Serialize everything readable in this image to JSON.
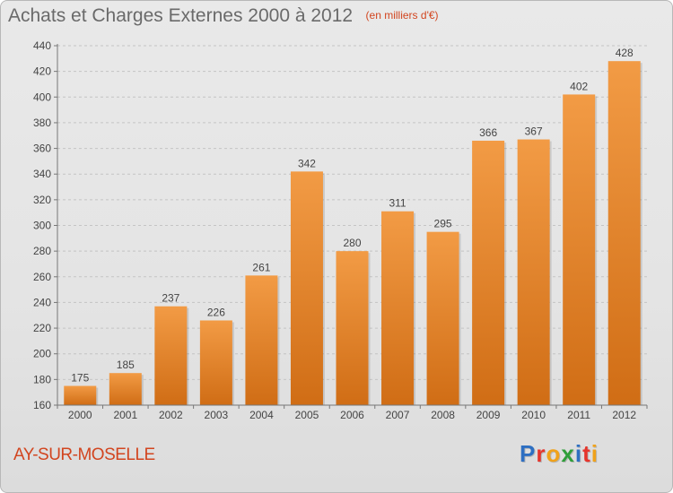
{
  "chart_data": {
    "type": "bar",
    "title": "Achats et Charges Externes 2000 à 2012",
    "subtitle": "(en milliers d'€)",
    "categories": [
      "2000",
      "2001",
      "2002",
      "2003",
      "2004",
      "2005",
      "2006",
      "2007",
      "2008",
      "2009",
      "2010",
      "2011",
      "2012"
    ],
    "values": [
      175,
      185,
      237,
      226,
      261,
      342,
      280,
      311,
      295,
      366,
      367,
      402,
      428
    ],
    "ylim": [
      160,
      440
    ],
    "yticks": [
      160,
      180,
      200,
      220,
      240,
      260,
      280,
      300,
      320,
      340,
      360,
      380,
      400,
      420,
      440
    ],
    "grid": true,
    "bar_color": "#f29b45",
    "bar_color_dark": "#d06d15"
  },
  "footer": {
    "commune": "AY-SUR-MOSELLE",
    "logo_letters": [
      {
        "char": "P",
        "color": "#2e6fc2"
      },
      {
        "char": "r",
        "color": "#e6342b"
      },
      {
        "char": "o",
        "color": "#f0a21a"
      },
      {
        "char": "x",
        "color": "#2f9e3a"
      },
      {
        "char": "i",
        "color": "#2e6fc2"
      },
      {
        "char": "t",
        "color": "#e6342b"
      },
      {
        "char": "i",
        "color": "#f0a21a"
      }
    ]
  }
}
